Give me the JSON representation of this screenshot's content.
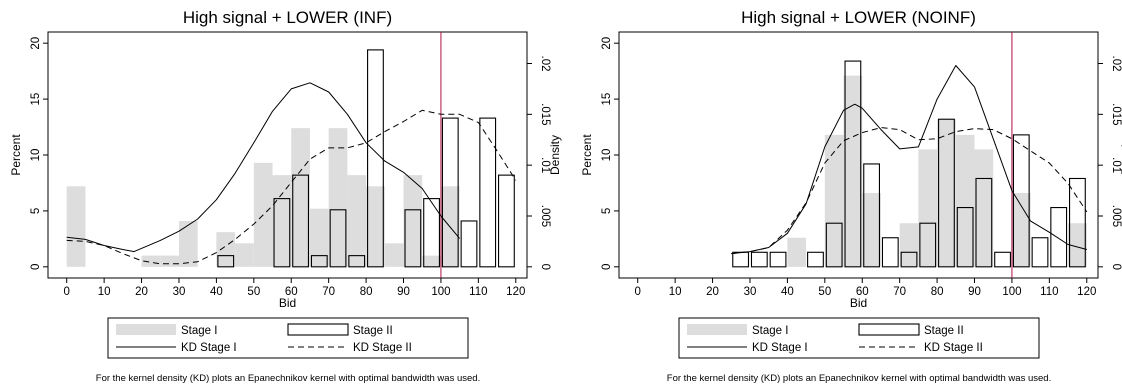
{
  "chart_data": [
    {
      "type": "bar",
      "title": "High signal + LOWER (INF)",
      "xlabel": "Bid",
      "ylabel": "Percent",
      "y2label": "Density",
      "xlim": [
        -5,
        123
      ],
      "ylim": [
        -1,
        21
      ],
      "y2lim": [
        -0.0011,
        0.0231
      ],
      "xticks": [
        "0",
        "10",
        "20",
        "30",
        "40",
        "50",
        "60",
        "70",
        "80",
        "90",
        "100",
        "110",
        "120"
      ],
      "yticks": [
        "0",
        "5",
        "10",
        "15",
        "20"
      ],
      "y2ticks": [
        "0",
        ".005",
        ".01",
        ".015",
        ".02"
      ],
      "vline_x": 100,
      "vline_color": "#b01040",
      "bar_width": 5,
      "stage1": {
        "name": "Stage I",
        "color": "#dddddd",
        "x": [
          2.5,
          22.5,
          27.5,
          32.5,
          42.5,
          47.5,
          52.5,
          57.5,
          62.5,
          67.5,
          72.5,
          77.5,
          82.5,
          87.5,
          92.5,
          97.5,
          102.5
        ],
        "values": [
          7.2,
          1.0,
          1.0,
          4.1,
          3.1,
          2.1,
          9.3,
          8.2,
          12.4,
          5.2,
          12.4,
          8.2,
          7.2,
          2.1,
          8.2,
          1.0,
          7.2
        ]
      },
      "stage2": {
        "name": "Stage II",
        "x": [
          42.5,
          57.5,
          62.5,
          67.5,
          72.5,
          77.5,
          82.5,
          92.5,
          97.5,
          102.5,
          107.5,
          112.5,
          117.5
        ],
        "values": [
          1.0,
          6.1,
          8.2,
          1.0,
          5.1,
          1.0,
          19.4,
          5.1,
          6.1,
          13.3,
          4.1,
          13.3,
          8.2
        ]
      },
      "kd1": {
        "name": "KD Stage I",
        "x": [
          0,
          5,
          10,
          15,
          18,
          25,
          30,
          35,
          40,
          45,
          50,
          55,
          60,
          65,
          70,
          75,
          80,
          85,
          90,
          95,
          100,
          105
        ],
        "y": [
          0.0029,
          0.0027,
          0.0021,
          0.0017,
          0.0015,
          0.0026,
          0.0035,
          0.0047,
          0.0066,
          0.0092,
          0.0122,
          0.0153,
          0.0175,
          0.0181,
          0.0172,
          0.015,
          0.0122,
          0.0104,
          0.0093,
          0.0077,
          0.005,
          0.0028
        ]
      },
      "kd2": {
        "name": "KD Stage II",
        "x": [
          0,
          5,
          10,
          15,
          20,
          25,
          30,
          35,
          40,
          45,
          50,
          55,
          60,
          65,
          70,
          75,
          80,
          85,
          90,
          95,
          100,
          105,
          110,
          115,
          120
        ],
        "y": [
          0.0026,
          0.0025,
          0.0021,
          0.0013,
          0.0006,
          0.0003,
          0.0003,
          0.0005,
          0.0014,
          0.0027,
          0.0042,
          0.006,
          0.0083,
          0.0106,
          0.0117,
          0.0117,
          0.0122,
          0.0133,
          0.0143,
          0.0154,
          0.015,
          0.015,
          0.0142,
          0.0114,
          0.0085
        ]
      }
    },
    {
      "type": "bar",
      "title": "High signal + LOWER (NOINF)",
      "xlabel": "Bid",
      "ylabel": "Percent",
      "y2label": "Density",
      "xlim": [
        -5,
        123
      ],
      "ylim": [
        -1,
        21
      ],
      "y2lim": [
        -0.0011,
        0.0231
      ],
      "xticks": [
        "0",
        "10",
        "20",
        "30",
        "40",
        "50",
        "60",
        "70",
        "80",
        "90",
        "100",
        "110",
        "120"
      ],
      "yticks": [
        "0",
        "5",
        "10",
        "15",
        "20"
      ],
      "y2ticks": [
        "0",
        ".005",
        ".01",
        ".015",
        ".02"
      ],
      "vline_x": 100,
      "vline_color": "#b01040",
      "bar_width": 5,
      "stage1": {
        "name": "Stage I",
        "color": "#dddddd",
        "x": [
          42.5,
          52.5,
          57.5,
          62.5,
          72.5,
          77.5,
          82.5,
          87.5,
          92.5,
          102.5,
          117.5
        ],
        "values": [
          2.6,
          11.8,
          17.1,
          6.6,
          3.9,
          10.5,
          13.2,
          11.8,
          10.5,
          6.6,
          3.9
        ]
      },
      "stage2": {
        "name": "Stage II",
        "x": [
          27.5,
          32.5,
          37.5,
          47.5,
          52.5,
          57.5,
          62.5,
          67.5,
          72.5,
          77.5,
          82.5,
          87.5,
          92.5,
          97.5,
          102.5,
          107.5,
          112.5,
          117.5
        ],
        "values": [
          1.3,
          1.3,
          1.3,
          1.3,
          3.9,
          18.4,
          9.2,
          2.6,
          1.3,
          3.9,
          13.2,
          5.3,
          7.9,
          1.3,
          11.8,
          2.6,
          5.3,
          7.9
        ]
      },
      "kd1": {
        "name": "KD Stage I",
        "x": [
          25,
          30,
          35,
          40,
          45,
          50,
          55,
          58,
          60,
          65,
          70,
          75,
          80,
          85,
          90,
          95,
          100,
          105,
          110,
          115,
          120
        ],
        "y": [
          0.0013,
          0.0015,
          0.0019,
          0.0033,
          0.0062,
          0.0118,
          0.0154,
          0.016,
          0.0156,
          0.0135,
          0.0116,
          0.0118,
          0.0165,
          0.0198,
          0.0177,
          0.0126,
          0.0075,
          0.0045,
          0.0034,
          0.0022,
          0.0017
        ]
      },
      "kd2": {
        "name": "KD Stage II",
        "x": [
          25,
          30,
          35,
          40,
          45,
          50,
          55,
          60,
          65,
          70,
          75,
          80,
          85,
          90,
          95,
          100,
          105,
          110,
          115,
          120
        ],
        "y": [
          0.0013,
          0.0015,
          0.0019,
          0.0036,
          0.0063,
          0.0102,
          0.0124,
          0.0132,
          0.0137,
          0.0135,
          0.0125,
          0.0126,
          0.0133,
          0.0136,
          0.0135,
          0.0126,
          0.0114,
          0.0102,
          0.0082,
          0.0054
        ]
      }
    }
  ],
  "legend": {
    "stage1": "Stage I",
    "stage2": "Stage II",
    "kd1": "KD Stage I",
    "kd2": "KD Stage II"
  },
  "footnote": "For the kernel density (KD) plots an Epanechnikov kernel with optimal bandwidth was used."
}
